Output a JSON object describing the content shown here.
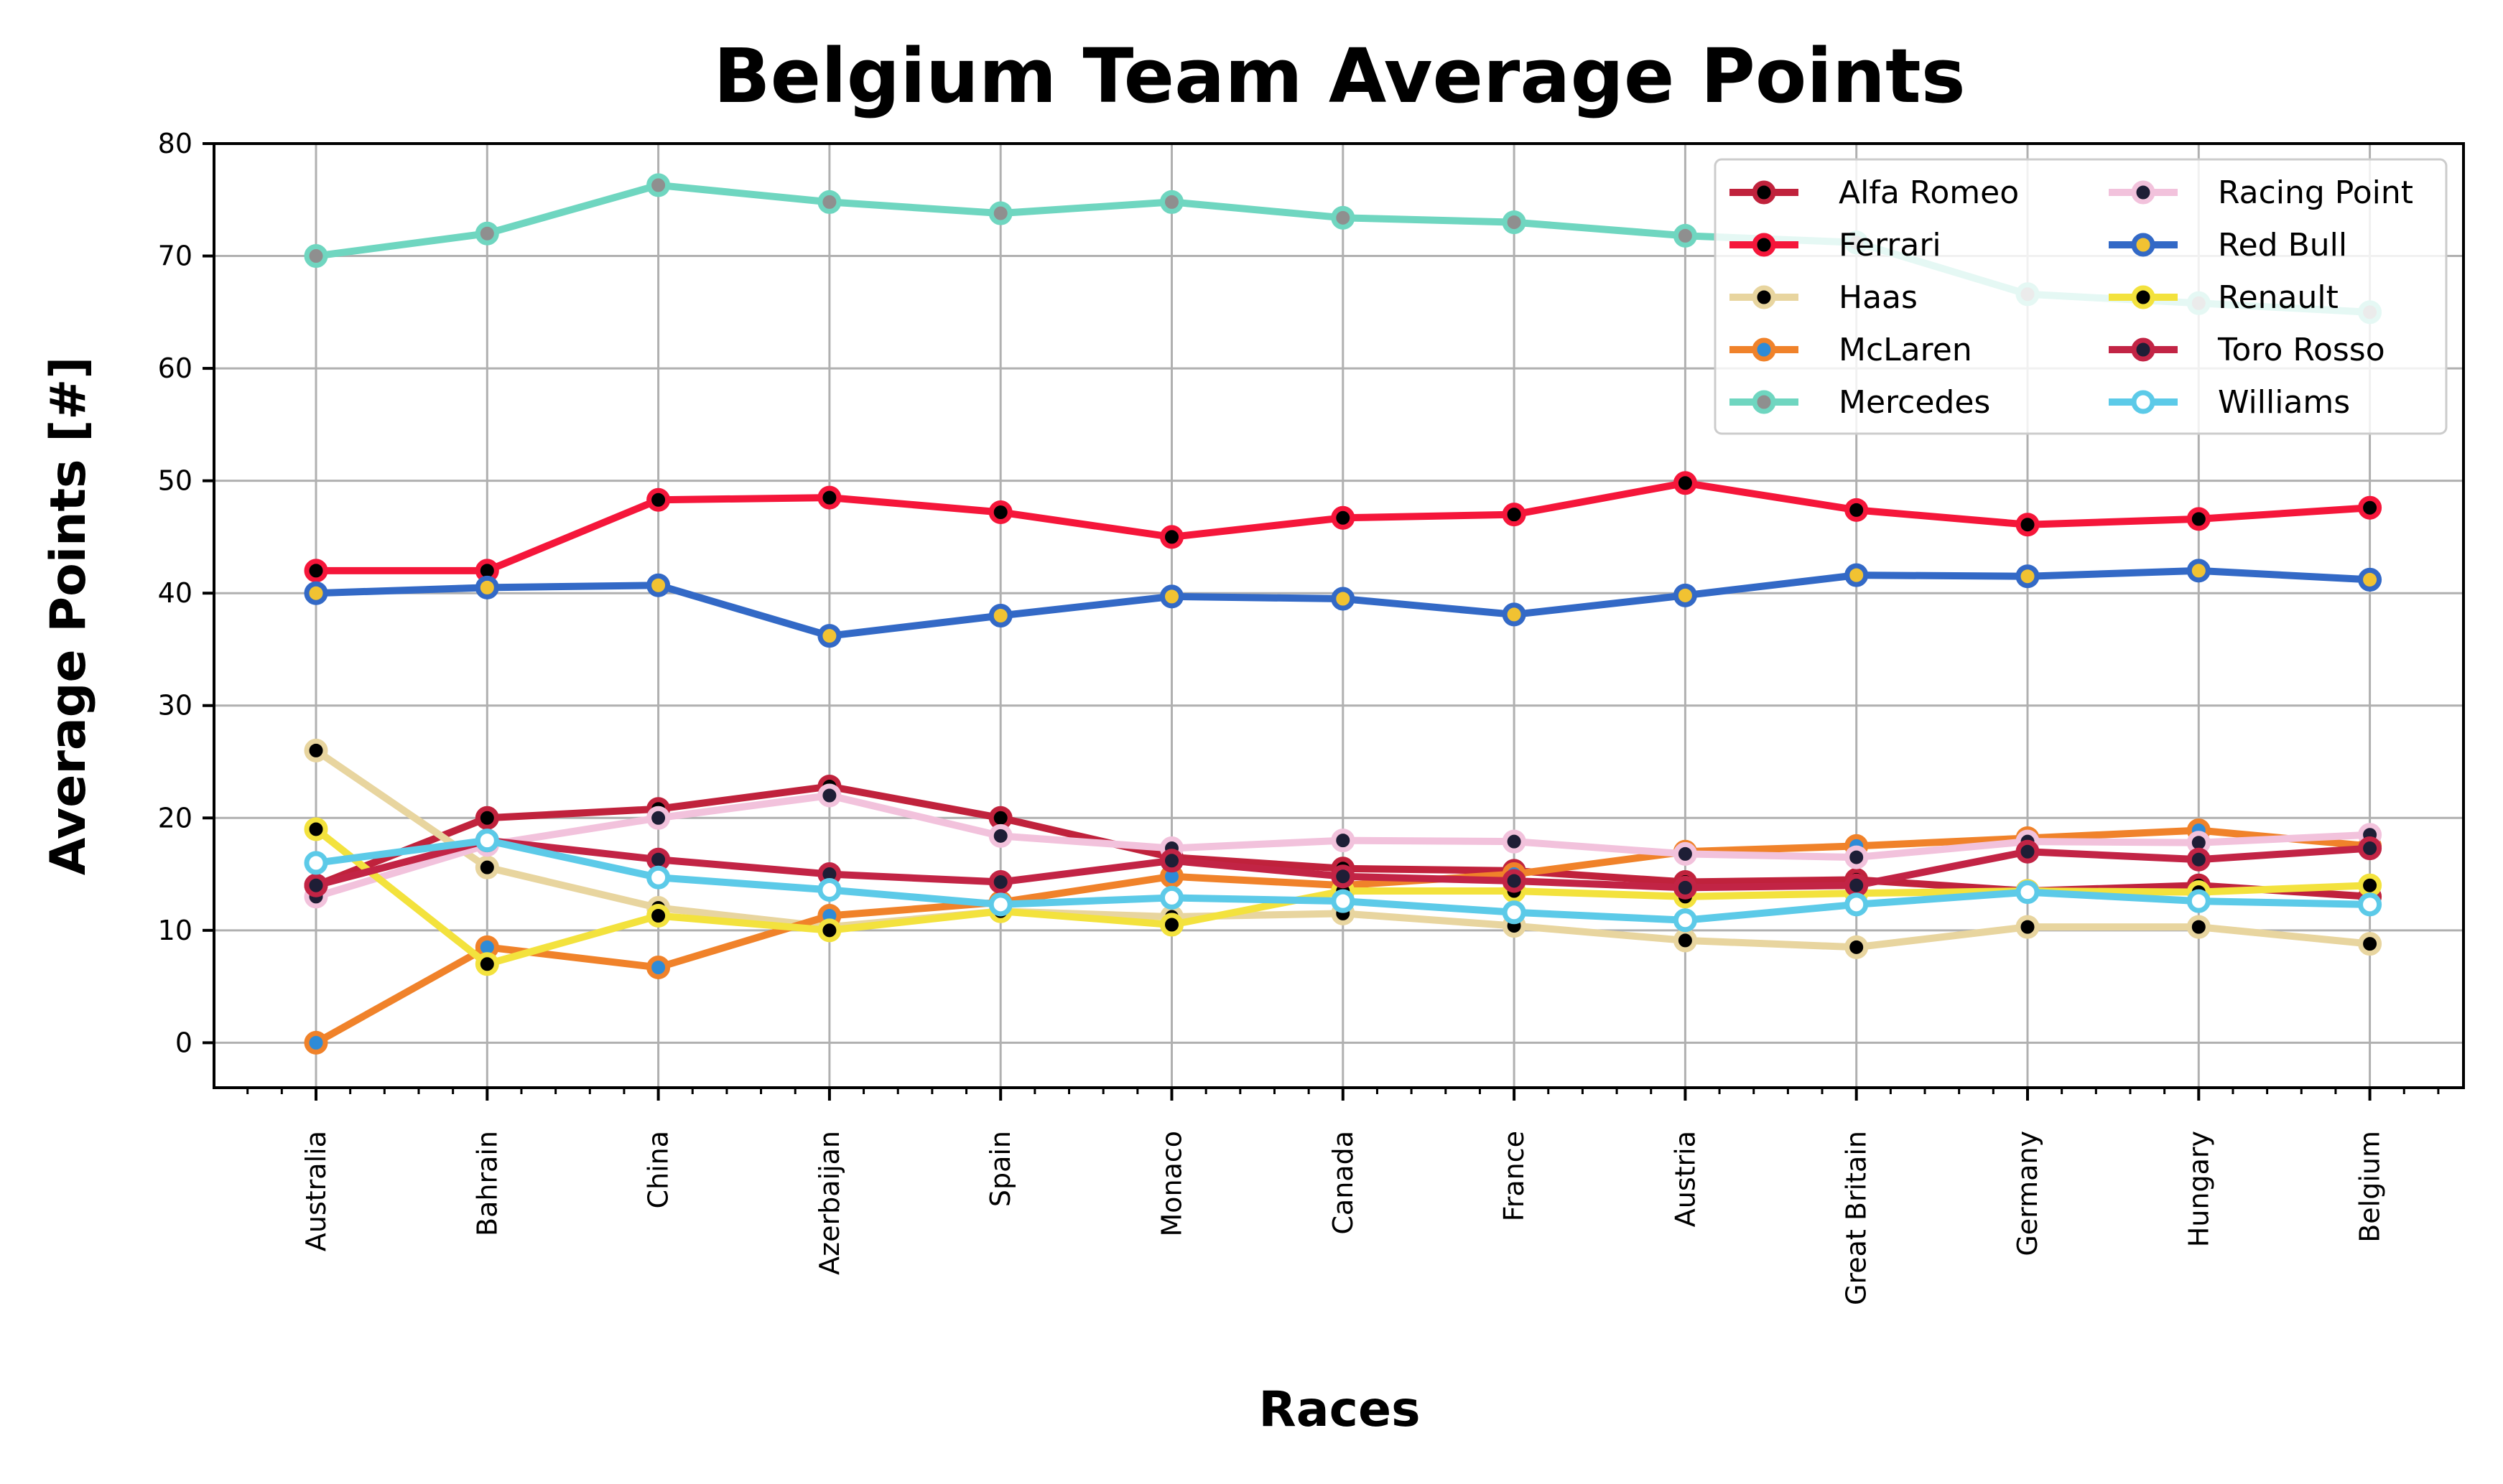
{
  "chart_data": {
    "type": "line",
    "title": "Belgium Team Average Points",
    "xlabel": "Races",
    "ylabel": "Average Points [#]",
    "categories": [
      "Australia",
      "Bahrain",
      "China",
      "Azerbaijan",
      "Spain",
      "Monaco",
      "Canada",
      "France",
      "Austria",
      "Great Britain",
      "Germany",
      "Hungary",
      "Belgium"
    ],
    "ylim": [
      -4,
      80
    ],
    "yticks": [
      0,
      10,
      20,
      30,
      40,
      50,
      60,
      70,
      80
    ],
    "grid": true,
    "legend_position": "top-right",
    "series": [
      {
        "name": "Alfa Romeo",
        "color": "#c0223c",
        "marker_color": "#000000",
        "values": [
          14.0,
          20.0,
          20.8,
          22.8,
          20.0,
          16.5,
          15.5,
          15.3,
          14.3,
          14.5,
          13.5,
          14.0,
          13.0
        ]
      },
      {
        "name": "Ferrari",
        "color": "#f5163a",
        "marker_color": "#000000",
        "values": [
          42.0,
          42.0,
          48.3,
          48.5,
          47.2,
          45.0,
          46.7,
          47.0,
          49.8,
          47.4,
          46.1,
          46.6,
          47.6
        ]
      },
      {
        "name": "Haas",
        "color": "#e8d59f",
        "marker_color": "#000000",
        "values": [
          26.0,
          15.6,
          12.0,
          10.3,
          11.7,
          11.2,
          11.5,
          10.4,
          9.1,
          8.5,
          10.3,
          10.3,
          8.8
        ]
      },
      {
        "name": "McLaren",
        "color": "#f0822a",
        "marker_color": "#2e8bd7",
        "values": [
          0.0,
          8.5,
          6.7,
          11.3,
          12.5,
          14.8,
          14.0,
          15.0,
          17.0,
          17.5,
          18.2,
          18.9,
          17.5
        ]
      },
      {
        "name": "Mercedes",
        "color": "#6fd6c0",
        "marker_color": "#8f8f8f",
        "values": [
          70.0,
          72.0,
          76.3,
          74.8,
          73.8,
          74.8,
          73.4,
          73.0,
          71.8,
          71.2,
          66.6,
          65.8,
          65.0
        ]
      },
      {
        "name": "Racing Point",
        "color": "#f2c2dc",
        "marker_color": "#1e1e36",
        "values": [
          13.0,
          17.6,
          20.0,
          22.0,
          18.4,
          17.3,
          18.0,
          17.9,
          16.8,
          16.5,
          17.9,
          17.8,
          18.5
        ]
      },
      {
        "name": "Red Bull",
        "color": "#3369c6",
        "marker_color": "#f1c232",
        "values": [
          40.0,
          40.5,
          40.7,
          36.2,
          38.0,
          39.7,
          39.5,
          38.1,
          39.8,
          41.6,
          41.5,
          42.0,
          41.2
        ]
      },
      {
        "name": "Renault",
        "color": "#f3e23d",
        "marker_color": "#000000",
        "values": [
          19.0,
          7.0,
          11.3,
          10.0,
          11.7,
          10.5,
          13.5,
          13.5,
          13.0,
          13.3,
          13.5,
          13.4,
          14.0
        ]
      },
      {
        "name": "Toro Rosso",
        "color": "#c22445",
        "marker_color": "#1e1e36",
        "values": [
          14.0,
          18.0,
          16.3,
          15.0,
          14.3,
          16.2,
          14.8,
          14.4,
          13.8,
          14.0,
          17.0,
          16.3,
          17.3
        ]
      },
      {
        "name": "Williams",
        "color": "#5ccae8",
        "marker_color": "#ffffff",
        "values": [
          16.0,
          18.0,
          14.7,
          13.6,
          12.3,
          12.9,
          12.6,
          11.6,
          10.9,
          12.3,
          13.4,
          12.6,
          12.3
        ]
      }
    ]
  }
}
